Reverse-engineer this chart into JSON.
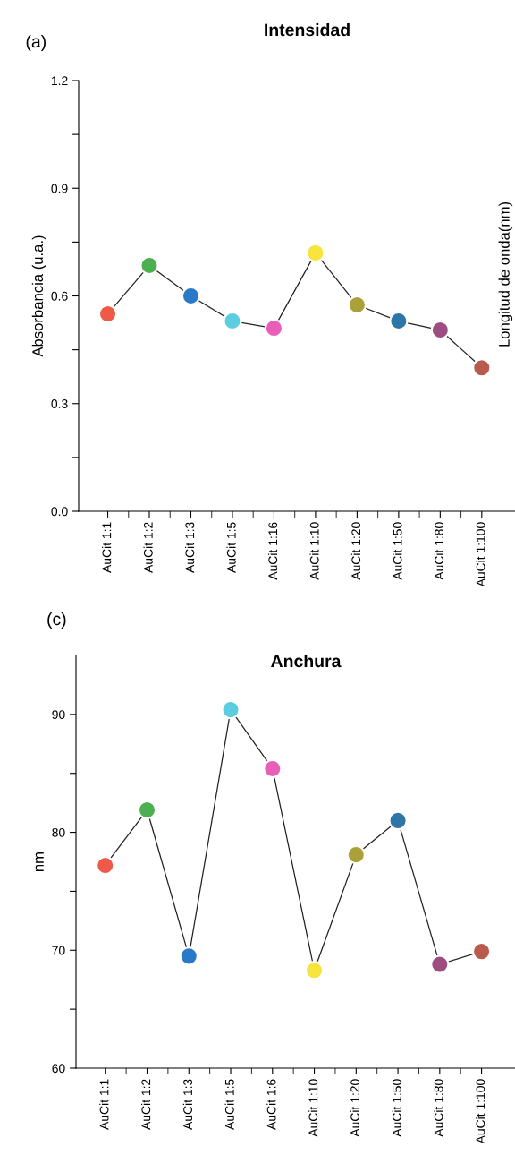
{
  "chart_data": [
    {
      "type": "line",
      "title": "Intensidad",
      "ylabel": "Absorbancia (u.a.)",
      "annotations": [
        "(a)",
        "Longitud de onda(nm)"
      ],
      "categories": [
        "AuCit 1:1",
        "AuCit 1:2",
        "AuCit 1:3",
        "AuCit 1:5",
        "AuCit 1:16",
        "AuCit 1:10",
        "AuCit 1:20",
        "AuCit 1:50",
        "AuCit 1:80",
        "AuCit 1:100"
      ],
      "series": [
        {
          "color": "#222222",
          "colors": [
            "#ee5a47",
            "#4caf50",
            "#2a78c8",
            "#5ccde0",
            "#e95eb8",
            "#f7e43c",
            "#aaa238",
            "#2f76a8",
            "#9e4d82",
            "#b85a4c"
          ],
          "values": [
            0.55,
            0.685,
            0.6,
            0.53,
            0.51,
            0.72,
            0.575,
            0.53,
            0.505,
            0.4
          ]
        }
      ],
      "ylim": [
        0,
        1.2
      ],
      "yticks": [
        {
          "value": 0,
          "label": "0.0"
        },
        {
          "value": 0.15,
          "label": null
        },
        0.3,
        {
          "value": 0.45,
          "label": null
        },
        0.6,
        {
          "value": 0.75,
          "label": null
        },
        0.9,
        {
          "value": 1.05,
          "label": null
        },
        1.2
      ],
      "marker": "circle",
      "line_style": "solid",
      "grid": false,
      "legend": false
    },
    {
      "type": "line",
      "title": "Anchura",
      "ylabel": "nm",
      "annotations": [
        "(c)"
      ],
      "categories": [
        "AuCit 1:1",
        "AuCit 1:2",
        "AuCit 1:3",
        "AuCit 1:5",
        "AuCit 1:6",
        "AuCit 1:10",
        "AuCit 1:20",
        "AuCit 1:50",
        "AuCit 1:80",
        "AuCit 1:100"
      ],
      "series": [
        {
          "color": "#222222",
          "colors": [
            "#ee5a47",
            "#4caf50",
            "#2a78c8",
            "#5ccde0",
            "#e95eb8",
            "#f7e43c",
            "#aaa238",
            "#2f76a8",
            "#9e4d82",
            "#b85a4c"
          ],
          "values": [
            77.2,
            81.9,
            69.5,
            90.4,
            85.4,
            68.3,
            78.1,
            81.0,
            68.8,
            69.9
          ]
        }
      ],
      "ylim": [
        60,
        95
      ],
      "yticks": [
        60,
        {
          "value": 65,
          "label": null
        },
        70,
        {
          "value": 75,
          "label": null
        },
        80,
        {
          "value": 85,
          "label": null
        },
        90
      ],
      "marker": "circle",
      "line_style": "solid",
      "grid": false,
      "legend": false
    }
  ]
}
